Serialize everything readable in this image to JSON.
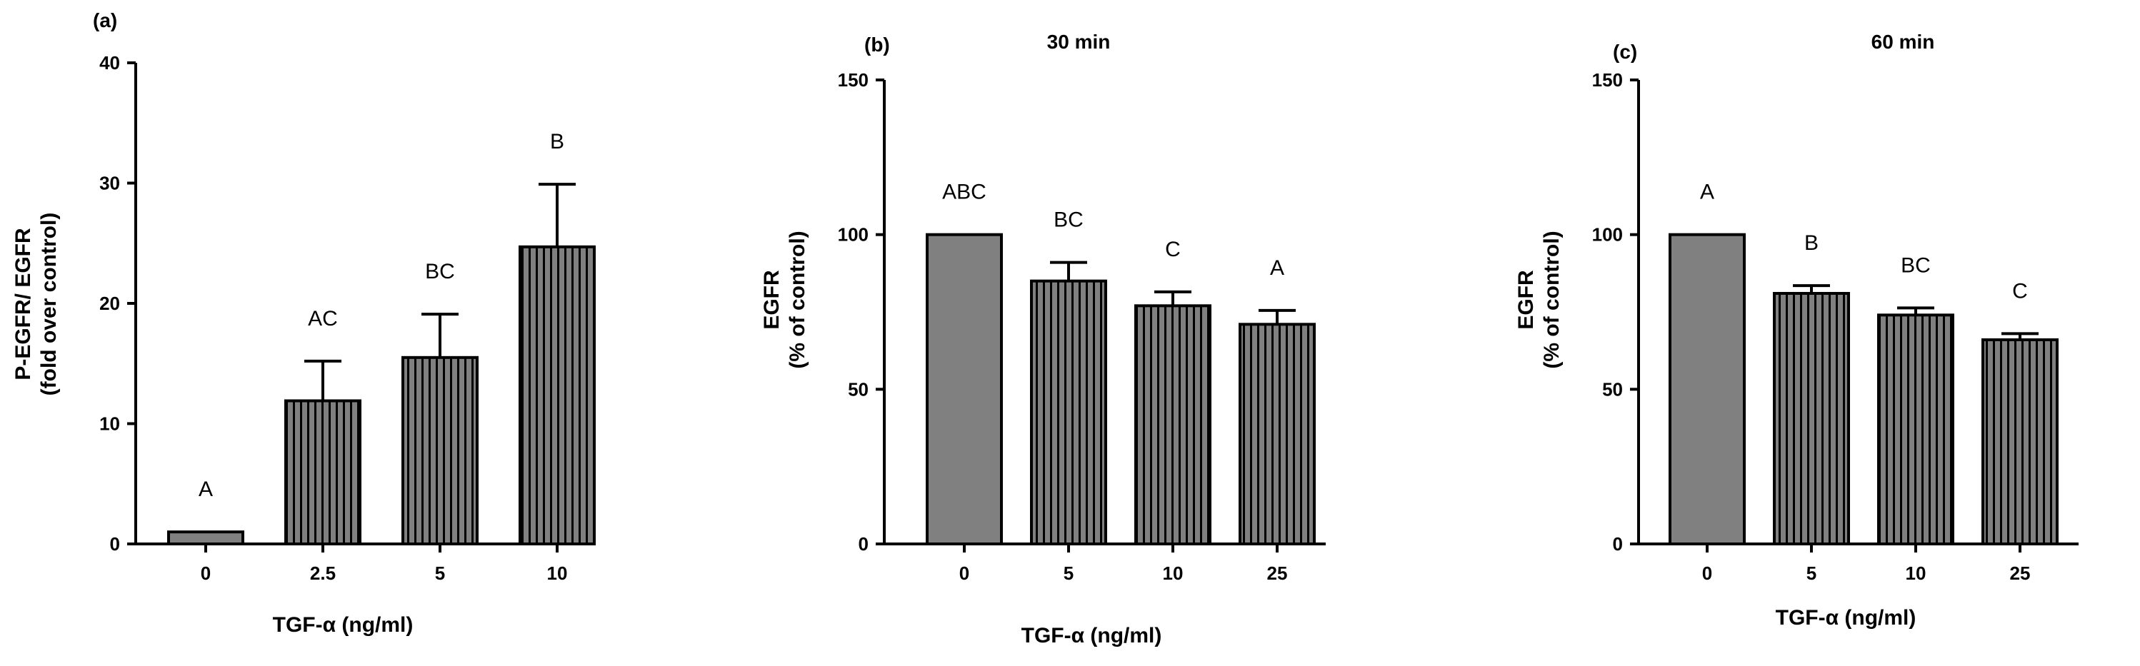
{
  "chart_data": [
    {
      "type": "bar",
      "panel_label": "(a)",
      "title": "",
      "xlabel": "TGF-α (ng/ml)",
      "ylabel_line1": "P-EGFR/ EGFR",
      "ylabel_line2": "(fold over control)",
      "categories": [
        "0",
        "2.5",
        "5",
        "10"
      ],
      "values": [
        1,
        11.9,
        15.5,
        24.7
      ],
      "errors": [
        0,
        3.3,
        3.6,
        5.2
      ],
      "significance": [
        "A",
        "AC",
        "BC",
        "B"
      ],
      "yticks": [
        "0",
        "10",
        "20",
        "30",
        "40"
      ],
      "ylim": [
        0,
        40
      ],
      "bar_fills": [
        "solid",
        "striped",
        "striped",
        "striped"
      ]
    },
    {
      "type": "bar",
      "panel_label": "(b)",
      "title": "30 min",
      "xlabel": "TGF-α (ng/ml)",
      "ylabel_line1": "EGFR",
      "ylabel_line2": "(% of control)",
      "categories": [
        "0",
        "5",
        "10",
        "25"
      ],
      "values": [
        100,
        85,
        77,
        71
      ],
      "errors": [
        0,
        6,
        4.5,
        4.5
      ],
      "significance": [
        "ABC",
        "BC",
        "C",
        "A"
      ],
      "yticks": [
        "0",
        "50",
        "100",
        "150"
      ],
      "ylim": [
        0,
        150
      ],
      "bar_fills": [
        "solid",
        "striped",
        "striped",
        "striped"
      ]
    },
    {
      "type": "bar",
      "panel_label": "(c)",
      "title": "60 min",
      "xlabel": "TGF-α (ng/ml)",
      "ylabel_line1": "EGFR",
      "ylabel_line2": "(% of control)",
      "categories": [
        "0",
        "5",
        "10",
        "25"
      ],
      "values": [
        100,
        81,
        74,
        66
      ],
      "errors": [
        0,
        2.5,
        2.3,
        2
      ],
      "significance": [
        "A",
        "B",
        "BC",
        "C"
      ],
      "yticks": [
        "0",
        "50",
        "100",
        "150"
      ],
      "ylim": [
        0,
        150
      ],
      "bar_fills": [
        "solid",
        "striped",
        "striped",
        "striped"
      ]
    }
  ],
  "colors": {
    "bar_fill": "#808080",
    "stripe": "#000000",
    "axis": "#000000"
  }
}
